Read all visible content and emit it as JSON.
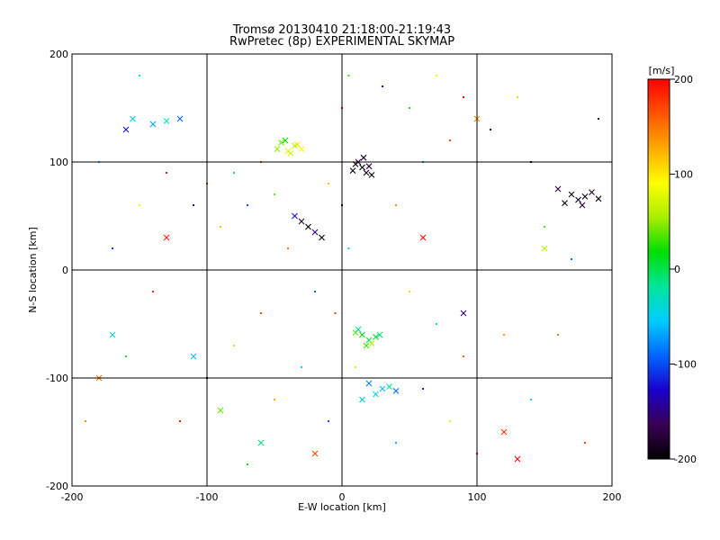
{
  "chart_data": {
    "type": "scatter",
    "title": "Tromsø 20130410 21:18:00-21:19:43",
    "subtitle": "RwPretec (8p) EXPERIMENTAL SKYMAP",
    "xlabel": "E-W location [km]",
    "ylabel": "N-S location [km]",
    "xlim": [
      -200,
      200
    ],
    "ylim": [
      -200,
      200
    ],
    "xticks": [
      "-200",
      "-100",
      "0",
      "100",
      "200"
    ],
    "yticks": [
      "-200",
      "-100",
      "0",
      "100",
      "200"
    ],
    "grid": true,
    "grid_lines": {
      "x": [
        -100,
        0,
        100
      ],
      "y": [
        -100,
        0,
        100
      ]
    },
    "colorbar": {
      "label": "[m/s]",
      "range": [
        -200,
        200
      ],
      "ticks": [
        "200",
        "100",
        "0",
        "-100",
        "-200"
      ],
      "colors": [
        "#000000",
        "#3a0055",
        "#1a00cc",
        "#0066ff",
        "#00ccff",
        "#00e69a",
        "#00dd00",
        "#aaee00",
        "#ffff00",
        "#ffaa00",
        "#ff5500",
        "#ff0000"
      ]
    },
    "series": [
      {
        "marker": "x",
        "points": [
          [
            15,
            95,
            -200
          ],
          [
            12,
            100,
            -180
          ],
          [
            18,
            90,
            -190
          ],
          [
            10,
            98,
            -200
          ],
          [
            20,
            96,
            -170
          ],
          [
            8,
            92,
            -200
          ],
          [
            16,
            104,
            -185
          ],
          [
            22,
            88,
            -200
          ],
          [
            -40,
            110,
            80
          ],
          [
            -35,
            115,
            60
          ],
          [
            -45,
            118,
            40
          ],
          [
            -30,
            112,
            90
          ],
          [
            -38,
            108,
            70
          ],
          [
            -42,
            120,
            20
          ],
          [
            -33,
            116,
            100
          ],
          [
            -48,
            112,
            50
          ],
          [
            170,
            70,
            -200
          ],
          [
            175,
            65,
            -190
          ],
          [
            180,
            68,
            -200
          ],
          [
            185,
            72,
            -180
          ],
          [
            165,
            62,
            -200
          ],
          [
            190,
            66,
            -195
          ],
          [
            178,
            60,
            -185
          ],
          [
            160,
            75,
            -170
          ],
          [
            15,
            -60,
            20
          ],
          [
            20,
            -65,
            0
          ],
          [
            10,
            -58,
            40
          ],
          [
            25,
            -62,
            10
          ],
          [
            18,
            -70,
            30
          ],
          [
            12,
            -55,
            -20
          ],
          [
            22,
            -68,
            60
          ],
          [
            28,
            -60,
            -10
          ],
          [
            30,
            -110,
            -60
          ],
          [
            25,
            -115,
            -40
          ],
          [
            20,
            -105,
            -80
          ],
          [
            35,
            -108,
            -20
          ],
          [
            15,
            -120,
            -50
          ],
          [
            40,
            -112,
            -90
          ],
          [
            -155,
            140,
            -50
          ],
          [
            -140,
            135,
            -70
          ],
          [
            -130,
            138,
            -30
          ],
          [
            -120,
            140,
            -90
          ],
          [
            -160,
            130,
            -120
          ],
          [
            -25,
            40,
            -200
          ],
          [
            -20,
            35,
            -150
          ],
          [
            -30,
            45,
            -180
          ],
          [
            -15,
            30,
            -200
          ],
          [
            -35,
            50,
            -120
          ],
          [
            -180,
            -100,
            150
          ],
          [
            -170,
            -60,
            -40
          ],
          [
            -130,
            30,
            190
          ],
          [
            -90,
            -130,
            40
          ],
          [
            -60,
            -160,
            -10
          ],
          [
            -20,
            -170,
            170
          ],
          [
            60,
            30,
            200
          ],
          [
            90,
            -40,
            -150
          ],
          [
            120,
            -150,
            180
          ],
          [
            130,
            -175,
            200
          ],
          [
            150,
            20,
            60
          ],
          [
            100,
            140,
            140
          ],
          [
            -110,
            -80,
            -60
          ]
        ]
      },
      {
        "marker": "dot",
        "points": [
          [
            -60,
            100,
            160
          ],
          [
            -80,
            90,
            -20
          ],
          [
            -100,
            80,
            180
          ],
          [
            -70,
            60,
            -100
          ],
          [
            -50,
            70,
            40
          ],
          [
            -90,
            40,
            120
          ],
          [
            -110,
            60,
            -140
          ],
          [
            -40,
            20,
            150
          ],
          [
            -20,
            -20,
            -90
          ],
          [
            -60,
            -40,
            170
          ],
          [
            -80,
            -70,
            60
          ],
          [
            -100,
            -100,
            -160
          ],
          [
            -50,
            -120,
            130
          ],
          [
            -30,
            -90,
            -50
          ],
          [
            -120,
            -140,
            190
          ],
          [
            -70,
            -180,
            20
          ],
          [
            40,
            60,
            140
          ],
          [
            60,
            100,
            -70
          ],
          [
            80,
            120,
            170
          ],
          [
            50,
            150,
            10
          ],
          [
            30,
            170,
            -130
          ],
          [
            70,
            180,
            90
          ],
          [
            90,
            160,
            200
          ],
          [
            110,
            130,
            -180
          ],
          [
            50,
            -20,
            110
          ],
          [
            70,
            -50,
            -20
          ],
          [
            90,
            -80,
            160
          ],
          [
            60,
            -110,
            -120
          ],
          [
            80,
            -140,
            80
          ],
          [
            100,
            -170,
            190
          ],
          [
            40,
            -160,
            -60
          ],
          [
            120,
            -60,
            130
          ],
          [
            140,
            100,
            -200
          ],
          [
            150,
            40,
            30
          ],
          [
            170,
            10,
            -90
          ],
          [
            160,
            -60,
            150
          ],
          [
            140,
            -120,
            -40
          ],
          [
            180,
            -160,
            170
          ],
          [
            130,
            160,
            60
          ],
          [
            190,
            140,
            -150
          ],
          [
            -150,
            60,
            90
          ],
          [
            -170,
            20,
            -110
          ],
          [
            -140,
            -20,
            180
          ],
          [
            -160,
            -80,
            0
          ],
          [
            -190,
            -140,
            140
          ],
          [
            -180,
            100,
            -60
          ],
          [
            -130,
            90,
            200
          ],
          [
            -150,
            180,
            -20
          ],
          [
            0,
            60,
            -170
          ],
          [
            -10,
            80,
            120
          ],
          [
            5,
            20,
            -40
          ],
          [
            -5,
            -40,
            170
          ],
          [
            10,
            -90,
            70
          ],
          [
            -10,
            -140,
            -100
          ],
          [
            0,
            150,
            190
          ],
          [
            5,
            180,
            30
          ]
        ]
      }
    ]
  }
}
